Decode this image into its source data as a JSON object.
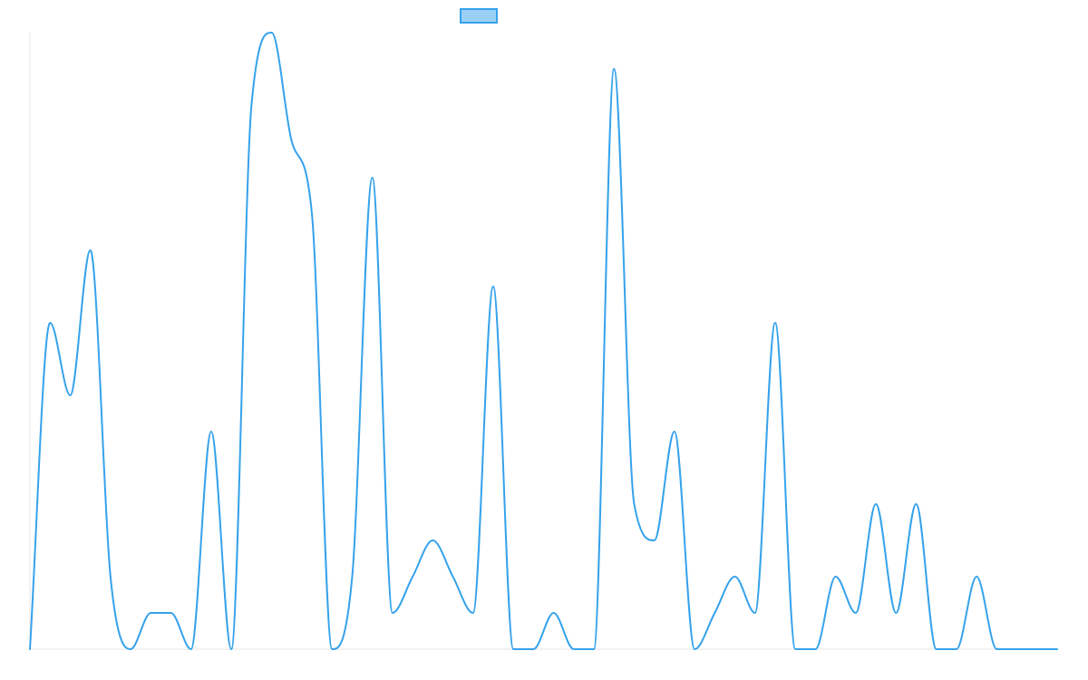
{
  "colors": {
    "series_stroke": "#36a2eb",
    "series_fill": "#9ad0f5",
    "axis": "#e6e6e6"
  },
  "chart_data": {
    "type": "line",
    "legend": {
      "position": "top",
      "entries": [
        {
          "label": ""
        }
      ]
    },
    "grid": false,
    "x": [
      0,
      1,
      2,
      3,
      4,
      5,
      6,
      7,
      8,
      9,
      10,
      11,
      12,
      13,
      14,
      15,
      16,
      17,
      18,
      19,
      20,
      21,
      22,
      23,
      24,
      25,
      26,
      27,
      28,
      29,
      30,
      31,
      32,
      33,
      34,
      35,
      36,
      37,
      38,
      39,
      40,
      41,
      42,
      43,
      44,
      45,
      46,
      47,
      48,
      49,
      50,
      51
    ],
    "ylim": [
      0,
      17
    ],
    "series": [
      {
        "values": [
          0,
          9,
          7,
          11,
          2,
          0,
          1,
          1,
          0,
          6,
          0,
          15,
          17,
          14,
          12,
          0,
          2,
          13,
          1,
          2,
          3,
          2,
          1,
          10,
          0,
          0,
          1,
          0,
          0,
          16,
          4,
          3,
          6,
          0,
          1,
          2,
          1,
          9,
          0,
          0,
          2,
          1,
          4,
          1,
          4,
          0,
          0,
          2,
          0,
          0,
          0,
          0
        ]
      }
    ]
  }
}
